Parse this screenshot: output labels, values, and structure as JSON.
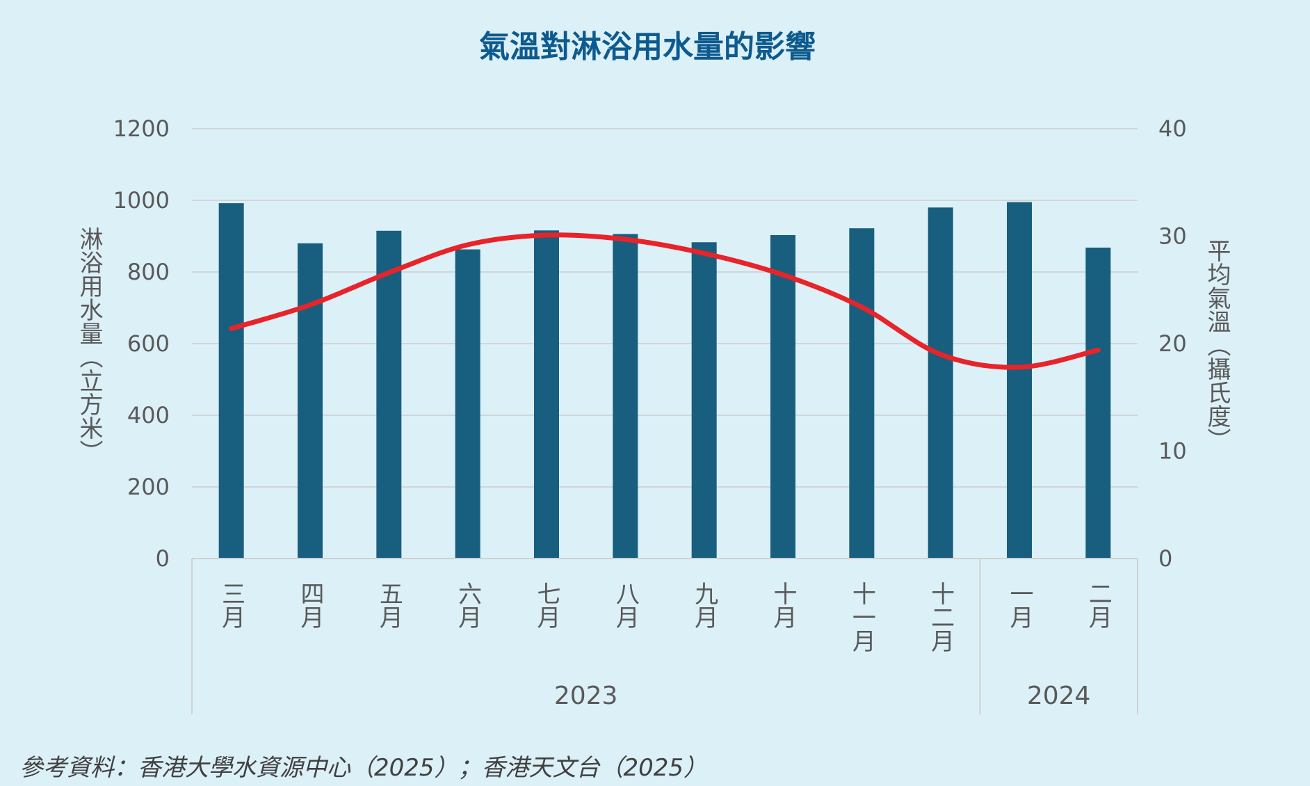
{
  "chart_data": {
    "type": "bar",
    "title": "氣溫對淋浴用水量的影響",
    "categories": [
      "三月",
      "四月",
      "五月",
      "六月",
      "七月",
      "八月",
      "九月",
      "十月",
      "十一月",
      "十二月",
      "一月",
      "二月"
    ],
    "year_groups": [
      {
        "label": "2023",
        "count": 10
      },
      {
        "label": "2024",
        "count": 2
      }
    ],
    "series": [
      {
        "type": "bar",
        "axis": "left",
        "color": "#185f7f",
        "values": [
          992,
          880,
          915,
          863,
          916,
          906,
          883,
          903,
          922,
          980,
          995,
          868
        ]
      },
      {
        "type": "line",
        "axis": "right",
        "color": "#e8232a",
        "values": [
          21.4,
          23.6,
          26.6,
          29.2,
          30.1,
          29.7,
          28.4,
          26.4,
          23.4,
          19.0,
          17.8,
          19.4
        ]
      }
    ],
    "ylabel": "淋浴用水量（立方米）",
    "ylabel_right": "平均氣溫（攝氏度）",
    "ylim": [
      0,
      1200
    ],
    "yticks": [
      0,
      200,
      400,
      600,
      800,
      1000,
      1200
    ],
    "ylim_right": [
      0,
      40
    ],
    "yticks_right": [
      0,
      10,
      20,
      30,
      40
    ],
    "grid": true
  },
  "source_note": "參考資料：香港大學水資源中心（2025）；香港天文台（2025）",
  "colors": {
    "background": "#dcf0f7",
    "title": "#0d5a8f",
    "bar": "#185f7f",
    "line": "#e8232a"
  }
}
